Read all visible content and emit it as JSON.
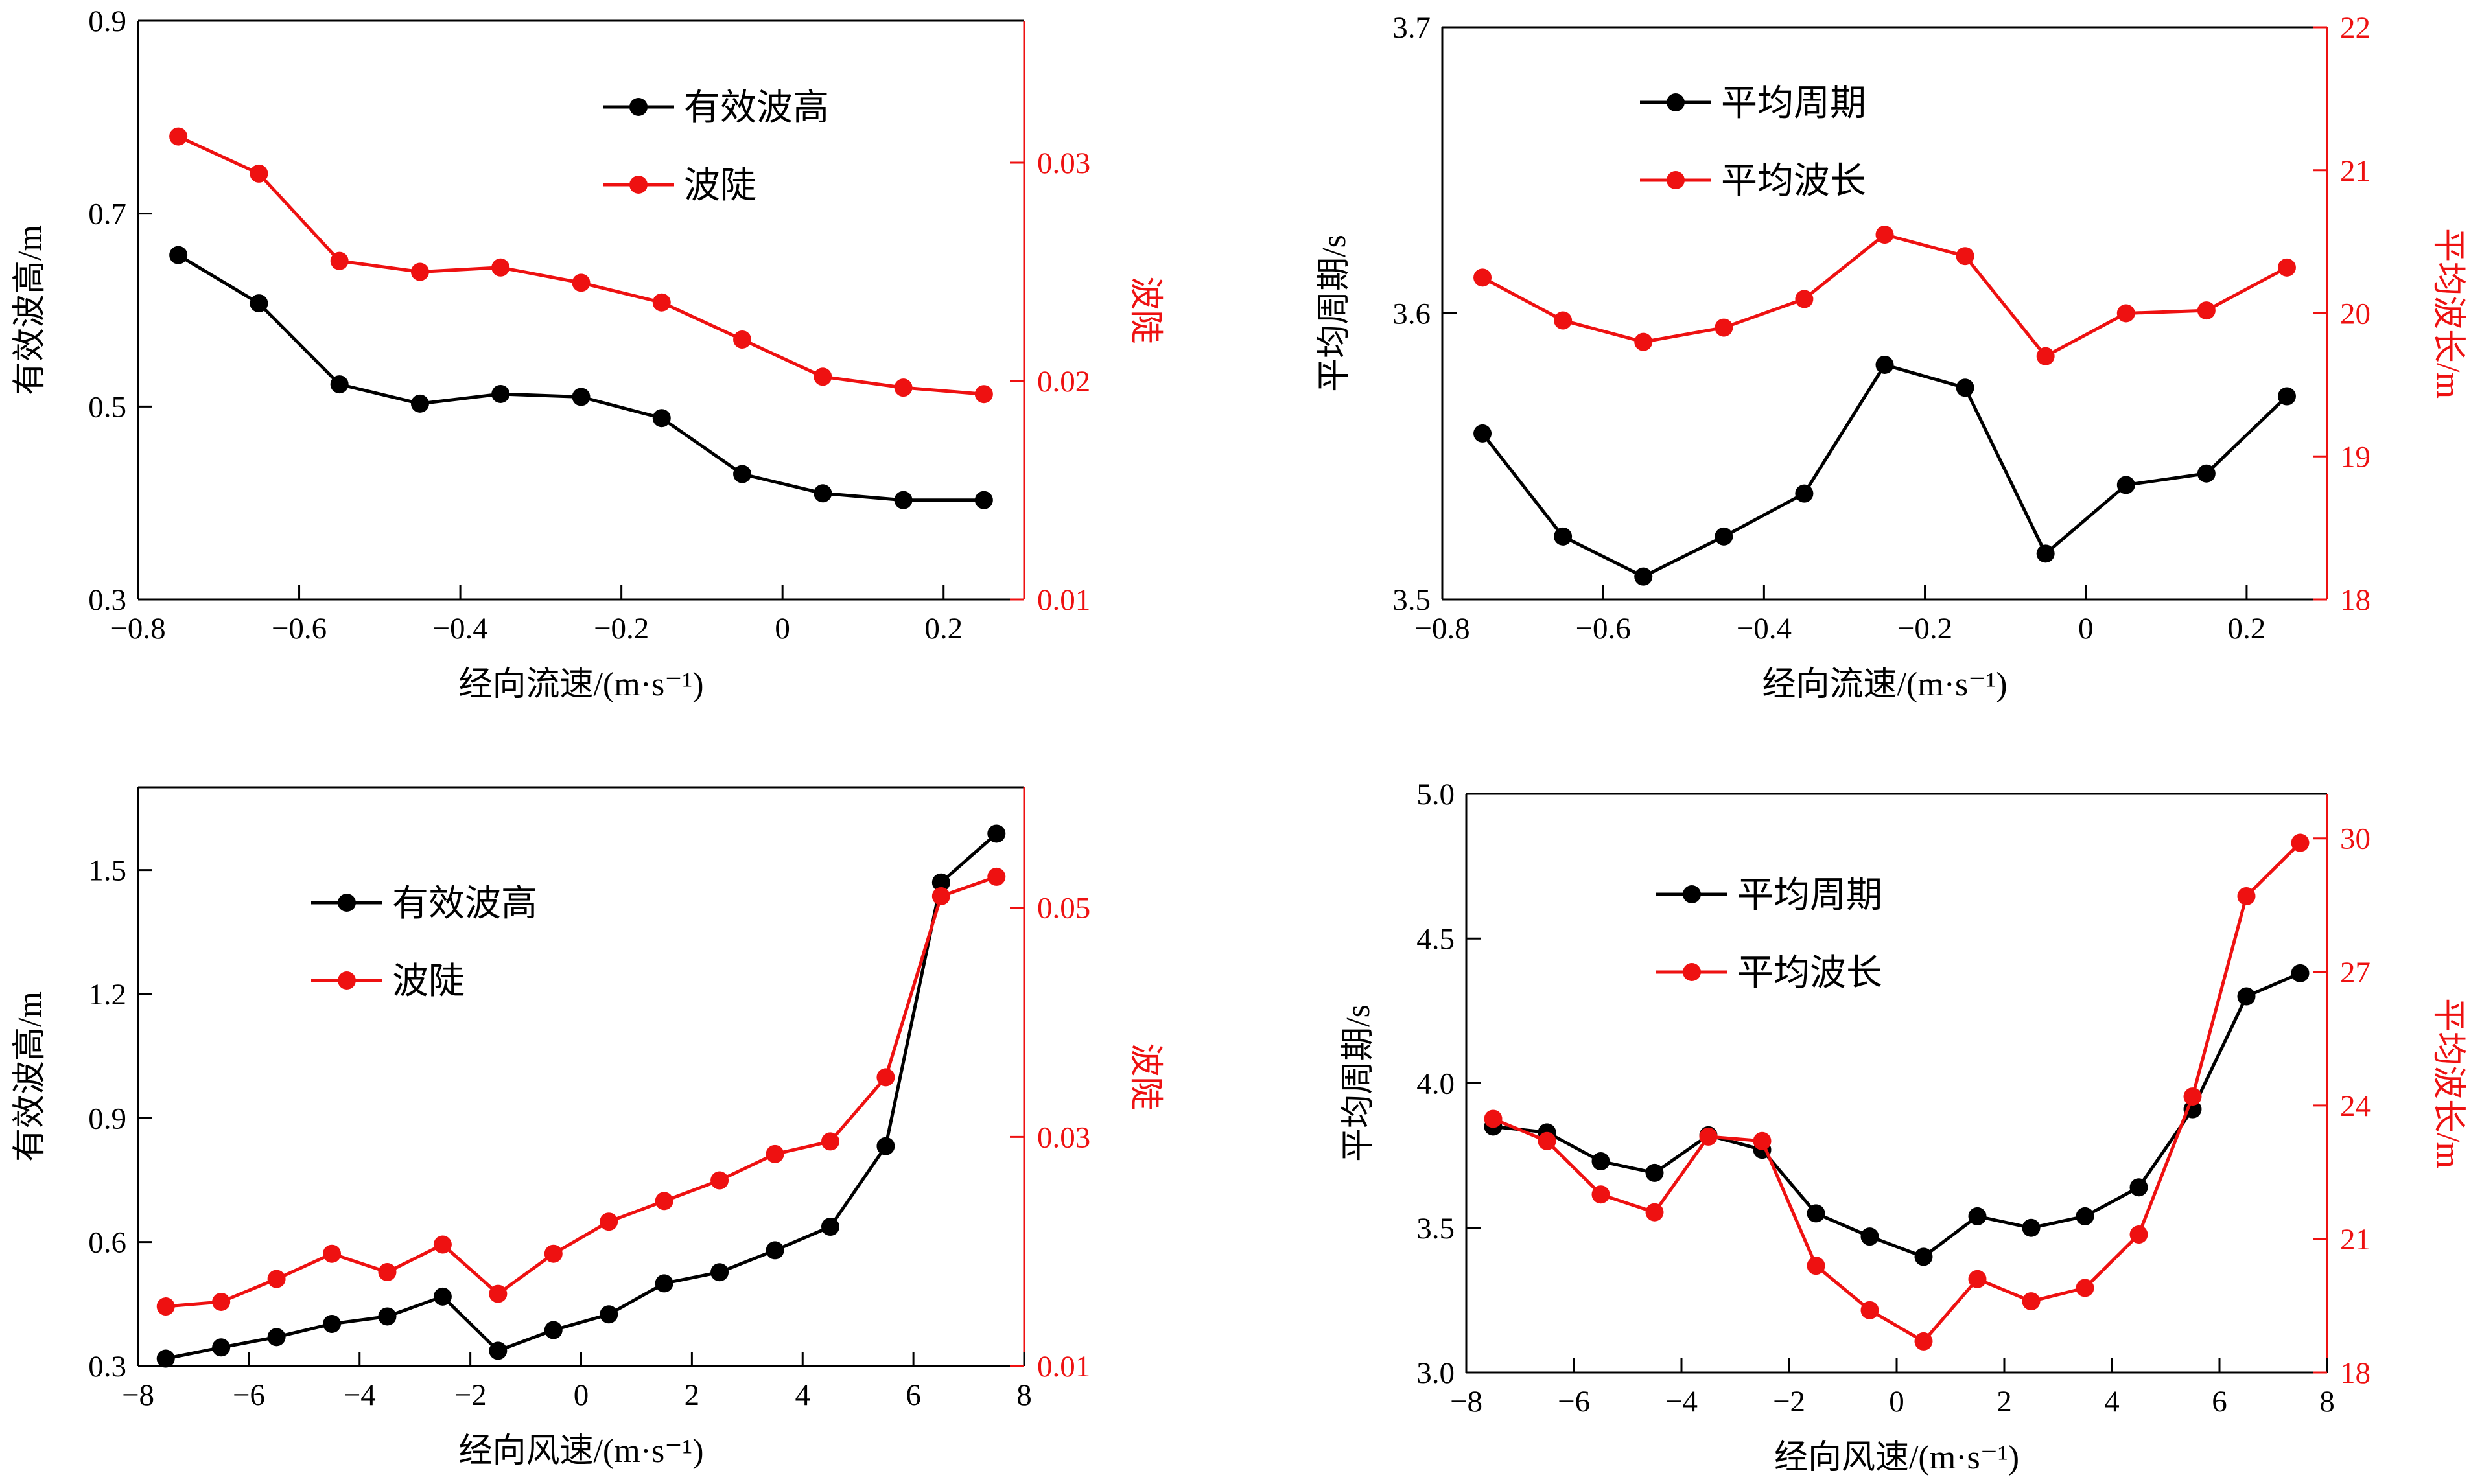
{
  "colors": {
    "primary": "#000000",
    "secondary": "#ee1111"
  },
  "chart_data": [
    {
      "type": "line",
      "xlabel": "经向流速/(m·s⁻¹)",
      "ylabel": "有效波高/m",
      "y2label": "波陡",
      "xlim": [
        -0.8,
        0.3
      ],
      "ylim": [
        0.3,
        0.9
      ],
      "y2lim": [
        0.01,
        0.0365
      ],
      "xticks": [
        -0.8,
        -0.6,
        -0.4,
        -0.2,
        0,
        0.2
      ],
      "xticklabels": [
        "−0.8",
        "−0.6",
        "−0.4",
        "−0.2",
        "0",
        "0.2"
      ],
      "yticks": [
        0.3,
        0.5,
        0.7,
        0.9
      ],
      "yticklabels": [
        "0.3",
        "0.5",
        "0.7",
        "0.9"
      ],
      "y2ticks": [
        0.01,
        0.02,
        0.03
      ],
      "y2ticklabels": [
        "0.01",
        "0.02",
        "0.03"
      ],
      "legend_position": "top-center",
      "x": [
        -0.75,
        -0.65,
        -0.55,
        -0.45,
        -0.35,
        -0.25,
        -0.15,
        -0.05,
        0.05,
        0.15,
        0.25
      ],
      "series": [
        {
          "name": "有效波高",
          "axis": "left",
          "color": "#000000",
          "values": [
            0.657,
            0.607,
            0.523,
            0.503,
            0.513,
            0.51,
            0.488,
            0.43,
            0.41,
            0.403,
            0.403
          ]
        },
        {
          "name": "波陡",
          "axis": "right",
          "color": "#ee1111",
          "values": [
            0.0312,
            0.0295,
            0.0255,
            0.025,
            0.0252,
            0.0245,
            0.0236,
            0.0219,
            0.0202,
            0.0197,
            0.0194
          ]
        }
      ]
    },
    {
      "type": "line",
      "xlabel": "经向流速/(m·s⁻¹)",
      "ylabel": "平均周期/s",
      "y2label": "平均波长/m",
      "xlim": [
        -0.8,
        0.3
      ],
      "ylim": [
        3.5,
        3.7
      ],
      "y2lim": [
        18,
        22
      ],
      "xticks": [
        -0.8,
        -0.6,
        -0.4,
        -0.2,
        0,
        0.2
      ],
      "xticklabels": [
        "−0.8",
        "−0.6",
        "−0.4",
        "−0.2",
        "0",
        "0.2"
      ],
      "yticks": [
        3.5,
        3.6,
        3.7
      ],
      "yticklabels": [
        "3.5",
        "3.6",
        "3.7"
      ],
      "y2ticks": [
        18,
        19,
        20,
        21,
        22
      ],
      "y2ticklabels": [
        "18",
        "19",
        "20",
        "21",
        "22"
      ],
      "legend_position": "top-center",
      "x": [
        -0.75,
        -0.65,
        -0.55,
        -0.45,
        -0.35,
        -0.25,
        -0.15,
        -0.05,
        0.05,
        0.15,
        0.25
      ],
      "series": [
        {
          "name": "平均周期",
          "axis": "left",
          "color": "#000000",
          "values": [
            3.558,
            3.522,
            3.508,
            3.522,
            3.537,
            3.582,
            3.574,
            3.516,
            3.54,
            3.544,
            3.571
          ]
        },
        {
          "name": "平均波长",
          "axis": "right",
          "color": "#ee1111",
          "values": [
            20.25,
            19.95,
            19.8,
            19.9,
            20.1,
            20.55,
            20.4,
            19.7,
            20.0,
            20.02,
            20.32
          ]
        }
      ]
    },
    {
      "type": "line",
      "xlabel": "经向风速/(m·s⁻¹)",
      "ylabel": "有效波高/m",
      "y2label": "波陡",
      "xlim": [
        -8,
        8
      ],
      "ylim": [
        0.3,
        1.7
      ],
      "y2lim": [
        0.01,
        0.0605
      ],
      "xticks": [
        -8,
        -6,
        -4,
        -2,
        0,
        2,
        4,
        6,
        8
      ],
      "xticklabels": [
        "−8",
        "−6",
        "−4",
        "−2",
        "0",
        "2",
        "4",
        "6",
        "8"
      ],
      "yticks": [
        0.3,
        0.6,
        0.9,
        1.2,
        1.5
      ],
      "yticklabels": [
        "0.3",
        "0.6",
        "0.9",
        "1.2",
        "1.5"
      ],
      "y2ticks": [
        0.01,
        0.03,
        0.05
      ],
      "y2ticklabels": [
        "0.01",
        "0.03",
        "0.05"
      ],
      "legend_position": "top-left",
      "x": [
        -7.5,
        -6.5,
        -5.5,
        -4.5,
        -3.5,
        -2.5,
        -1.5,
        -0.5,
        0.5,
        1.5,
        2.5,
        3.5,
        4.5,
        5.5,
        6.5,
        7.5
      ],
      "series": [
        {
          "name": "有效波高",
          "axis": "left",
          "color": "#000000",
          "values": [
            0.318,
            0.345,
            0.37,
            0.402,
            0.42,
            0.468,
            0.337,
            0.387,
            0.425,
            0.5,
            0.527,
            0.58,
            0.637,
            0.832,
            1.47,
            1.588
          ]
        },
        {
          "name": "波陡",
          "axis": "right",
          "color": "#ee1111",
          "values": [
            0.0152,
            0.0156,
            0.0176,
            0.0198,
            0.0182,
            0.0206,
            0.0163,
            0.0198,
            0.0226,
            0.0244,
            0.0262,
            0.0285,
            0.0296,
            0.0352,
            0.051,
            0.0527
          ]
        }
      ]
    },
    {
      "type": "line",
      "xlabel": "经向风速/(m·s⁻¹)",
      "ylabel": "平均周期/s",
      "y2label": "平均波长/m",
      "xlim": [
        -8,
        8
      ],
      "ylim": [
        3.0,
        5.0
      ],
      "y2lim": [
        18,
        31
      ],
      "xticks": [
        -8,
        -6,
        -4,
        -2,
        0,
        2,
        4,
        6,
        8
      ],
      "xticklabels": [
        "−8",
        "−6",
        "−4",
        "−2",
        "0",
        "2",
        "4",
        "6",
        "8"
      ],
      "yticks": [
        3.0,
        3.5,
        4.0,
        4.5,
        5.0
      ],
      "yticklabels": [
        "3.0",
        "3.5",
        "4.0",
        "4.5",
        "5.0"
      ],
      "y2ticks": [
        18,
        21,
        24,
        27,
        30
      ],
      "y2ticklabels": [
        "18",
        "21",
        "24",
        "27",
        "30"
      ],
      "legend_position": "top-left",
      "x": [
        -7.5,
        -6.5,
        -5.5,
        -4.5,
        -3.5,
        -2.5,
        -1.5,
        -0.5,
        0.5,
        1.5,
        2.5,
        3.5,
        4.5,
        5.5,
        6.5,
        7.5
      ],
      "series": [
        {
          "name": "平均周期",
          "axis": "left",
          "color": "#000000",
          "values": [
            3.85,
            3.83,
            3.73,
            3.69,
            3.82,
            3.77,
            3.55,
            3.47,
            3.4,
            3.54,
            3.5,
            3.54,
            3.64,
            3.91,
            4.3,
            4.38
          ]
        },
        {
          "name": "平均波长",
          "axis": "right",
          "color": "#ee1111",
          "values": [
            23.7,
            23.2,
            22.0,
            21.6,
            23.3,
            23.2,
            20.4,
            19.4,
            18.7,
            20.1,
            19.6,
            19.9,
            21.1,
            24.2,
            28.7,
            29.9
          ]
        }
      ]
    }
  ]
}
